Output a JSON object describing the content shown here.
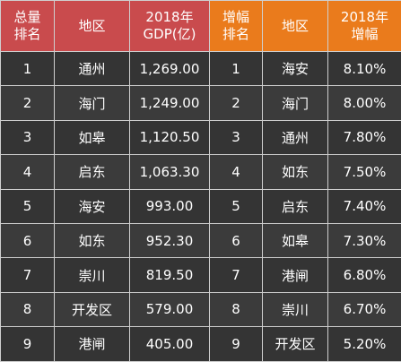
{
  "headers": {
    "total_rank": [
      "总量",
      "排名"
    ],
    "region": "地区",
    "gdp": [
      "2018年",
      "GDP(亿)"
    ],
    "growth_rank": [
      "增幅",
      "排名"
    ],
    "region2": "地区",
    "growth": [
      "2018年",
      "增幅"
    ]
  },
  "rows": [
    {
      "rank": "1",
      "region": "通州",
      "gdp": "1,269.00",
      "growth_rank": "1",
      "growth_region": "海安",
      "growth": "8.10%"
    },
    {
      "rank": "2",
      "region": "海门",
      "gdp": "1,249.00",
      "growth_rank": "2",
      "growth_region": "海门",
      "growth": "8.00%"
    },
    {
      "rank": "3",
      "region": "如皋",
      "gdp": "1,120.50",
      "growth_rank": "3",
      "growth_region": "通州",
      "growth": "7.80%"
    },
    {
      "rank": "4",
      "region": "启东",
      "gdp": "1,063.30",
      "growth_rank": "4",
      "growth_region": "如东",
      "growth": "7.50%"
    },
    {
      "rank": "5",
      "region": "海安",
      "gdp": "993.00",
      "growth_rank": "5",
      "growth_region": "启东",
      "growth": "7.40%"
    },
    {
      "rank": "6",
      "region": "如东",
      "gdp": "952.30",
      "growth_rank": "6",
      "growth_region": "如皋",
      "growth": "7.30%"
    },
    {
      "rank": "7",
      "region": "崇川",
      "gdp": "819.50",
      "growth_rank": "7",
      "growth_region": "港闸",
      "growth": "6.80%"
    },
    {
      "rank": "8",
      "region": "开发区",
      "gdp": "579.00",
      "growth_rank": "8",
      "growth_region": "崇川",
      "growth": "6.70%"
    },
    {
      "rank": "9",
      "region": "港闸",
      "gdp": "405.00",
      "growth_rank": "9",
      "growth_region": "开发区",
      "growth": "5.20%"
    }
  ],
  "colors": {
    "header_left": "#c94b4d",
    "header_right": "#ea7b1c",
    "body": "#343434"
  }
}
